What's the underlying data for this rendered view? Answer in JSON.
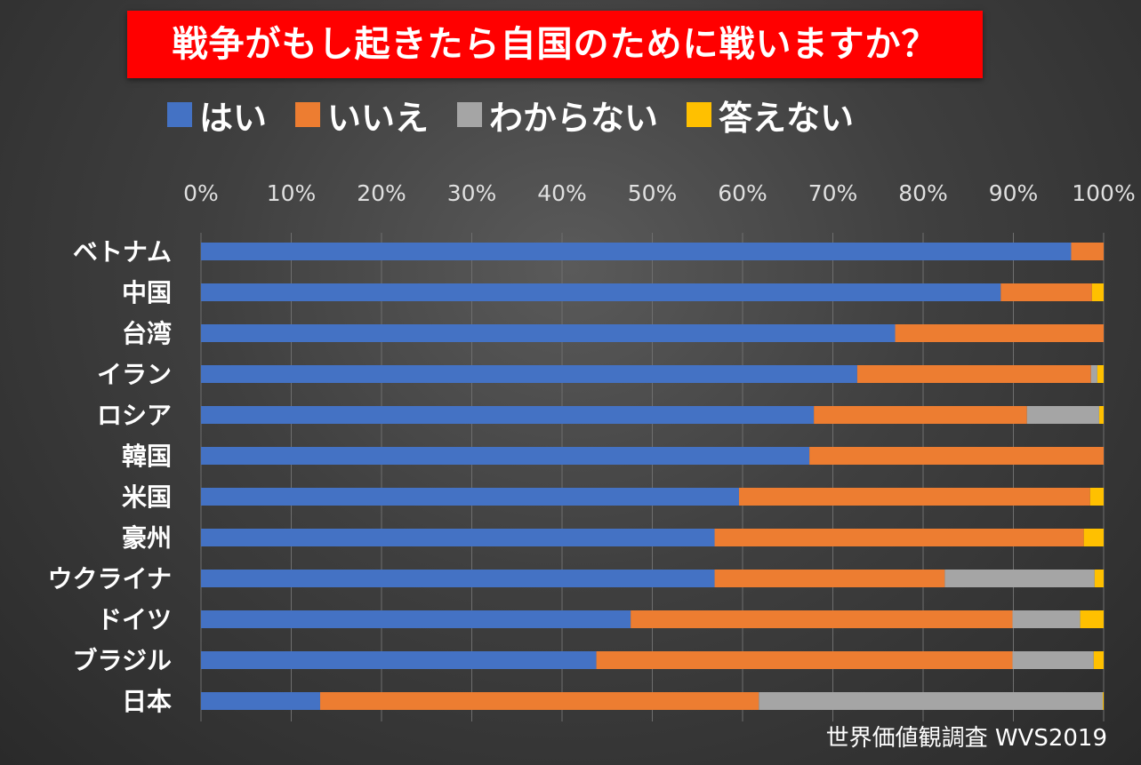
{
  "title": "戦争がもし起きたら自国のために戦いますか？",
  "source": "世界価値観調査 WVS2019",
  "chart_data": {
    "type": "bar",
    "orientation": "horizontal",
    "stacked": true,
    "title": "戦争がもし起きたら自国のために戦いますか？",
    "xlim": [
      0,
      100
    ],
    "x_ticks": [
      "0%",
      "10%",
      "20%",
      "30%",
      "40%",
      "50%",
      "60%",
      "70%",
      "80%",
      "90%",
      "100%"
    ],
    "grid": true,
    "legend_position": "top",
    "categories": [
      "ベトナム",
      "中国",
      "台湾",
      "イラン",
      "ロシア",
      "韓国",
      "米国",
      "豪州",
      "ウクライナ",
      "ドイツ",
      "ブラジル",
      "日本"
    ],
    "series": [
      {
        "name": "はい",
        "color": "#4472c4",
        "values": [
          96.4,
          88.6,
          76.9,
          72.7,
          67.9,
          67.4,
          59.6,
          56.9,
          56.9,
          47.6,
          43.8,
          13.2
        ]
      },
      {
        "name": "いいえ",
        "color": "#ed7d31",
        "values": [
          3.6,
          10.1,
          23.1,
          25.9,
          23.6,
          32.6,
          38.9,
          40.9,
          25.5,
          42.3,
          46.1,
          48.6
        ]
      },
      {
        "name": "わからない",
        "color": "#a5a5a5",
        "values": [
          0.0,
          0.0,
          0.0,
          0.7,
          8.0,
          0.0,
          0.0,
          0.0,
          16.6,
          7.5,
          9.0,
          38.1
        ]
      },
      {
        "name": "答えない",
        "color": "#ffc000",
        "values": [
          0.0,
          1.3,
          0.0,
          0.7,
          0.5,
          0.0,
          1.5,
          2.2,
          1.0,
          2.6,
          1.1,
          0.1
        ]
      }
    ]
  }
}
